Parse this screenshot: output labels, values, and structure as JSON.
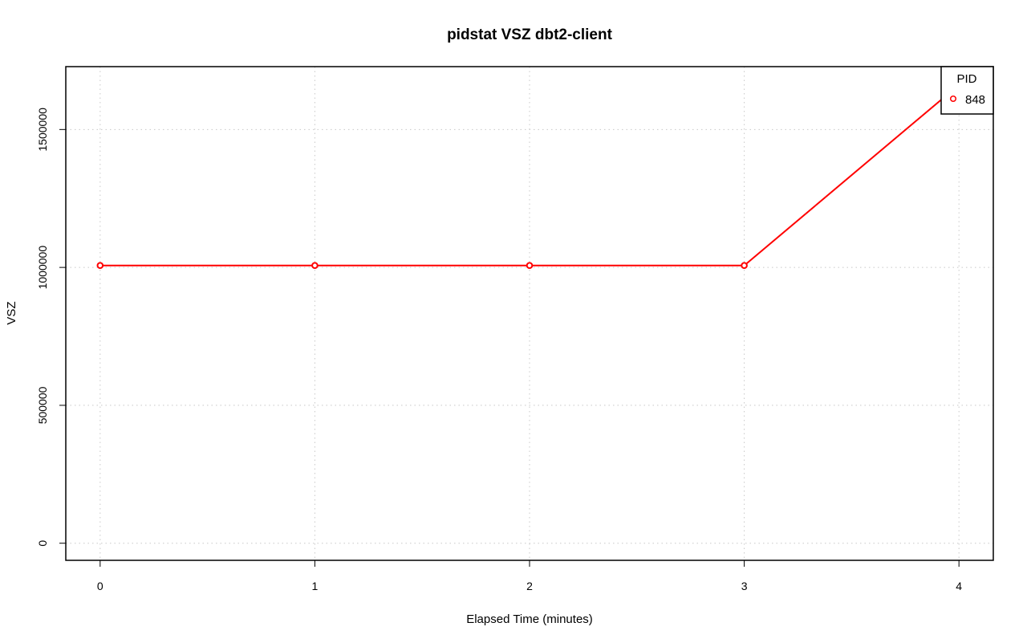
{
  "chart_data": {
    "type": "line",
    "title": "pidstat VSZ dbt2-client",
    "xlabel": "Elapsed Time (minutes)",
    "ylabel": "VSZ",
    "x": [
      0,
      1,
      2,
      3,
      4
    ],
    "x_ticks": [
      "0",
      "1",
      "2",
      "3",
      "4"
    ],
    "y_ticks": [
      "0",
      "500000",
      "1000000",
      "1500000"
    ],
    "y_tick_values": [
      0,
      500000,
      1000000,
      1500000
    ],
    "xlim": [
      -0.16,
      4.16
    ],
    "ylim": [
      -62000,
      1728000
    ],
    "grid": true,
    "legend_position": "top-right",
    "legend_title": "PID",
    "series": [
      {
        "name": "848",
        "color": "#ff0000",
        "marker": "open-circle",
        "values": [
          1007000,
          1007000,
          1007000,
          1007000,
          1662000
        ]
      }
    ]
  }
}
